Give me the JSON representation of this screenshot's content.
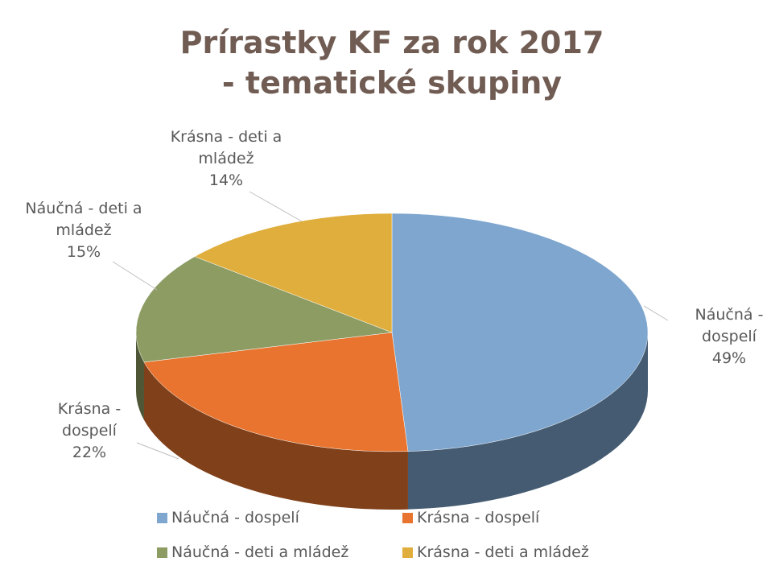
{
  "chart_data": {
    "type": "pie3d",
    "title": "Prírastky KF za rok 2017 - tematické skupiny",
    "categories": [
      "Náučná - dospelí",
      "Krásna - dospelí",
      "Náučná - deti a mládež",
      "Krásna - deti a mládež"
    ],
    "values": [
      49,
      22,
      15,
      14
    ],
    "value_labels": [
      "49%",
      "22%",
      "15%",
      "14%"
    ],
    "colors": [
      "#7ea6cf",
      "#e8742f",
      "#8d9c63",
      "#e0ae3c"
    ],
    "legend": "bottom"
  }
}
